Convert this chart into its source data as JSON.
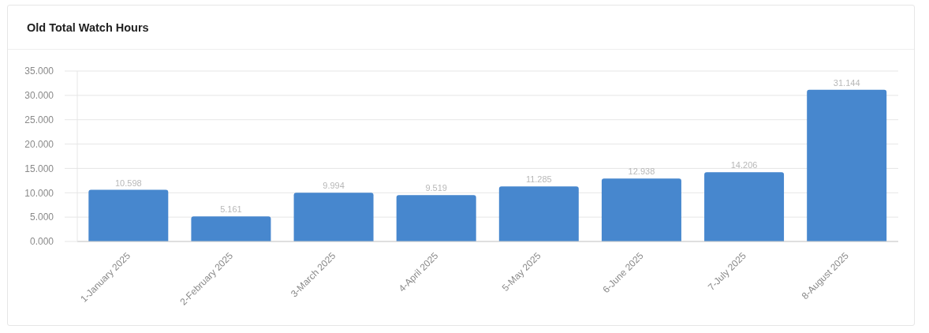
{
  "chart_data": {
    "type": "bar",
    "title": "Old Total Watch Hours",
    "categories": [
      "1-January 2025",
      "2-February 2025",
      "3-March 2025",
      "4-April 2025",
      "5-May 2025",
      "6-June 2025",
      "7-July 2025",
      "8-August 2025"
    ],
    "values": [
      10.598,
      5.161,
      9.994,
      9.519,
      11.285,
      12.938,
      14.206,
      31.144
    ],
    "value_labels": [
      "10.598",
      "5.161",
      "9.994",
      "9.519",
      "11.285",
      "12.938",
      "14.206",
      "31.144"
    ],
    "color": "#4787ce",
    "ylim": [
      0,
      35
    ],
    "yticks": [
      {
        "value": 0,
        "label": "0.000"
      },
      {
        "value": 5,
        "label": "5.000"
      },
      {
        "value": 10,
        "label": "10.000"
      },
      {
        "value": 15,
        "label": "15.000"
      },
      {
        "value": 20,
        "label": "20.000"
      },
      {
        "value": 25,
        "label": "25.000"
      },
      {
        "value": 30,
        "label": "30.000"
      },
      {
        "value": 35,
        "label": "35.000"
      }
    ],
    "grid": "y"
  }
}
